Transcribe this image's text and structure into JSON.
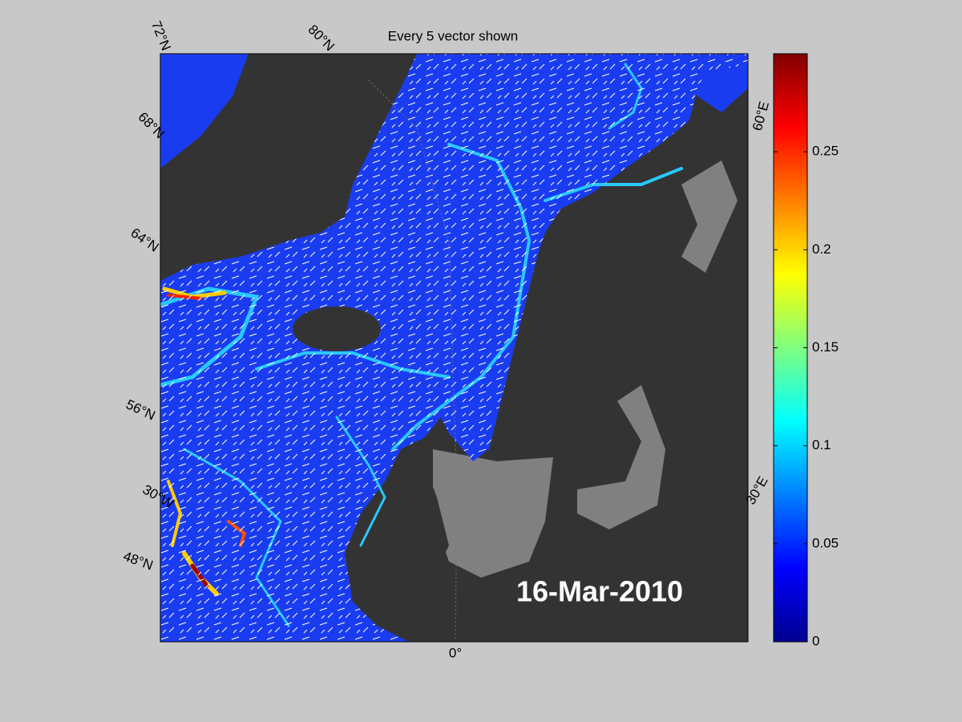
{
  "title": "Every 5 vector shown",
  "date_label": "16-Mar-2010",
  "graticule_labels": [
    "72°N",
    "80°N",
    "68°N",
    "64°N",
    "56°N",
    "30°W",
    "48°N",
    "0°",
    "30°E",
    "60°E"
  ],
  "colorbar": {
    "clim": [
      0,
      0.3
    ],
    "ticks": [
      0,
      0.05,
      0.1,
      0.15,
      0.2,
      0.25
    ]
  }
}
